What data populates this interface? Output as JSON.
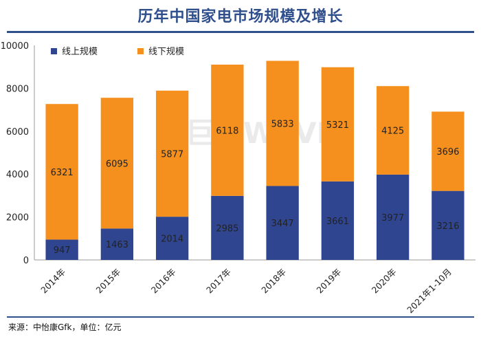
{
  "header": {
    "title": "历年中国家电市场规模及增长"
  },
  "footer": {
    "source": "来源：中怡康Gfk，单位：亿元"
  },
  "watermark": "巨潮WAVE",
  "colors": {
    "online": "#2f4590",
    "offline": "#f5901e",
    "rule": "#2f4e8c"
  },
  "chart_data": {
    "type": "bar",
    "stacked": true,
    "title": "历年中国家电市场规模及增长",
    "categories": [
      "2014年",
      "2015年",
      "2016年",
      "2017年",
      "2018年",
      "2019年",
      "2020年",
      "2021年1-10月"
    ],
    "series": [
      {
        "name": "线上规模",
        "values": [
          947,
          1463,
          2014,
          2985,
          3447,
          3661,
          3977,
          3216
        ]
      },
      {
        "name": "线下规模",
        "values": [
          6321,
          6095,
          5877,
          6118,
          5833,
          5321,
          4125,
          3696
        ]
      }
    ],
    "ylim": [
      0,
      10000
    ],
    "yticks": [
      0,
      2000,
      4000,
      6000,
      8000,
      10000
    ],
    "xlabel": "",
    "ylabel": "",
    "legend": "top-left"
  }
}
